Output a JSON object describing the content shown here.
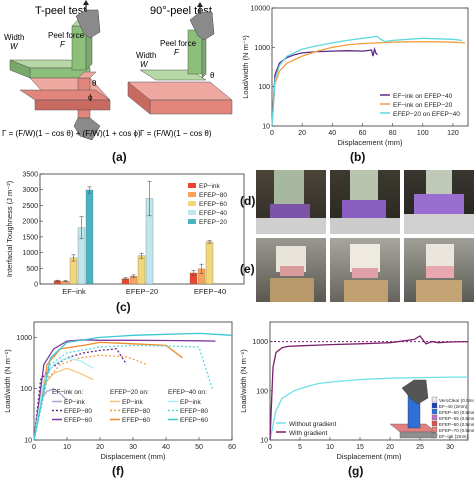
{
  "panel_a": {
    "label": "(a)",
    "tpeel_title": "T-peel test",
    "peel90_title": "90°-peel test",
    "peel_force": "Peel force",
    "force_sym": "F",
    "width": "Width",
    "width_sym": "W",
    "theta": "θ",
    "phi": "ϕ",
    "eq1": "Γ = (F/W)(1 − cos θ) + (F/W)(1 + cos ϕ)",
    "eq2": "Γ = (F/W)(1 − cos θ)",
    "colors": {
      "green": "#8cc07a",
      "red": "#e2857c",
      "gray": "#8a8a8a"
    }
  },
  "panel_b": {
    "label": "(b)",
    "chart_data": {
      "type": "line",
      "xlabel": "Displacement (mm)",
      "ylabel": "Load/width (N m⁻¹)",
      "xlim": [
        0,
        130
      ],
      "yscale": "log",
      "ylim": [
        10,
        10000
      ],
      "xticks": [
        "0",
        "20",
        "40",
        "60",
        "80",
        "100",
        "120"
      ],
      "yticks": [
        "10",
        "100",
        "1000",
        "10000"
      ],
      "legend_position": "lower-right",
      "series": [
        {
          "name": "EF−ink on EFEP−40",
          "color": "#5b2a86",
          "x": [
            0,
            2,
            5,
            10,
            15,
            20,
            30,
            40,
            50,
            60,
            66,
            67,
            68,
            69,
            70
          ],
          "y": [
            10,
            200,
            400,
            550,
            650,
            720,
            780,
            800,
            820,
            800,
            850,
            600,
            900,
            700,
            650
          ]
        },
        {
          "name": "EF−ink on EFEP−20",
          "color": "#f0a040",
          "x": [
            0,
            2,
            5,
            10,
            20,
            30,
            40,
            50,
            60,
            70,
            80,
            90,
            100,
            110,
            120,
            128
          ],
          "y": [
            10,
            120,
            250,
            400,
            600,
            800,
            1000,
            1150,
            1250,
            1300,
            1350,
            1380,
            1400,
            1380,
            1350,
            1300
          ]
        },
        {
          "name": "EFEP−20 on EFEP−40",
          "color": "#5fd8e0",
          "x": [
            0,
            2,
            5,
            10,
            20,
            30,
            40,
            50,
            60,
            70,
            72,
            75,
            80,
            90,
            100,
            110,
            120,
            126
          ],
          "y": [
            10,
            150,
            350,
            600,
            900,
            1100,
            1300,
            1500,
            1700,
            1900,
            1600,
            1400,
            1500,
            1600,
            1700,
            1650,
            1600,
            1500
          ]
        }
      ]
    }
  },
  "panel_c": {
    "label": "(c)",
    "chart_data": {
      "type": "bar",
      "ylabel": "Interfacial Toughness (J m⁻²)",
      "ylim": [
        0,
        3500
      ],
      "yticks": [
        "0",
        "500",
        "1000",
        "1500",
        "2000",
        "2500",
        "3000",
        "3500"
      ],
      "categories": [
        "EF−ink",
        "EFEP−20",
        "EFEP−40"
      ],
      "legend_position": "top-right",
      "series": [
        {
          "name": "EP−ink",
          "color": "#e8472e",
          "values": [
            100,
            170,
            350
          ],
          "errors": [
            20,
            30,
            80
          ]
        },
        {
          "name": "EFEP−80",
          "color": "#f7a35c",
          "values": [
            90,
            250,
            480
          ],
          "errors": [
            20,
            40,
            150
          ]
        },
        {
          "name": "EFEP−60",
          "color": "#f3d57a",
          "values": [
            830,
            900,
            1340
          ],
          "errors": [
            100,
            80,
            40
          ]
        },
        {
          "name": "EFEP−40",
          "color": "#bfe6ec",
          "values": [
            1790,
            2720,
            null
          ],
          "errors": [
            350,
            550,
            null
          ]
        },
        {
          "name": "EFEP−20",
          "color": "#4ab3c2",
          "values": [
            2990,
            null,
            null
          ],
          "errors": [
            100,
            null,
            null
          ]
        }
      ]
    }
  },
  "panel_d": {
    "label": "(d)"
  },
  "panel_e": {
    "label": "(e)"
  },
  "panel_f": {
    "label": "(f)",
    "chart_data": {
      "type": "line",
      "xlabel": "Displacement (mm)",
      "ylabel": "Load/width (N m⁻¹)",
      "xlim": [
        0,
        60
      ],
      "yscale": "log",
      "ylim": [
        10,
        2000
      ],
      "xticks": [
        "0",
        "10",
        "20",
        "30",
        "40",
        "50",
        "60"
      ],
      "yticks": [
        "10",
        "100",
        "1000"
      ],
      "legend_position": "bottom-center",
      "legend_groups": [
        "EF−ink on:",
        "EFEP−20 on:",
        "EFEP−40 on:"
      ],
      "legend_items": [
        "EP−ink",
        "EFEP−80",
        "EFEP−60"
      ],
      "series": [
        {
          "name": "EF−ink on EP−ink",
          "color": "#b4a0d0",
          "style": "solid",
          "x": [
            0,
            2,
            4,
            6,
            8,
            10
          ],
          "y": [
            10,
            60,
            90,
            100,
            80,
            60
          ]
        },
        {
          "name": "EF−ink on EFEP−80",
          "color": "#5b2a86",
          "style": "dotted",
          "x": [
            0,
            2,
            5,
            10,
            15,
            20,
            25,
            28
          ],
          "y": [
            10,
            150,
            250,
            400,
            500,
            560,
            600,
            300
          ]
        },
        {
          "name": "EF−ink on EFEP−60",
          "color": "#7b3a9e",
          "style": "solid",
          "x": [
            0,
            3,
            6,
            10,
            15,
            20,
            30,
            40,
            50,
            55
          ],
          "y": [
            10,
            300,
            600,
            850,
            900,
            880,
            880,
            870,
            860,
            850
          ]
        },
        {
          "name": "EFEP−20 on EP−ink",
          "color": "#f7c37c",
          "style": "solid",
          "x": [
            0,
            3,
            6,
            10,
            14,
            18
          ],
          "y": [
            10,
            120,
            200,
            250,
            200,
            150
          ]
        },
        {
          "name": "EFEP−20 on EFEP−80",
          "color": "#f0a040",
          "style": "dotted",
          "x": [
            0,
            4,
            8,
            14,
            20,
            28,
            34
          ],
          "y": [
            10,
            150,
            300,
            400,
            450,
            420,
            300
          ]
        },
        {
          "name": "EFEP−20 on EFEP−60",
          "color": "#f08a2a",
          "style": "solid",
          "x": [
            0,
            4,
            8,
            15,
            20,
            30,
            40,
            45
          ],
          "y": [
            10,
            300,
            600,
            700,
            800,
            750,
            700,
            400
          ]
        },
        {
          "name": "EFEP−40 on EP−ink",
          "color": "#a8eef2",
          "style": "solid",
          "x": [
            0,
            3,
            6,
            10,
            14,
            18
          ],
          "y": [
            10,
            150,
            300,
            400,
            350,
            250
          ]
        },
        {
          "name": "EFEP−40 on EFEP−80",
          "color": "#5fd8e0",
          "style": "dotted",
          "x": [
            0,
            5,
            10,
            20,
            30,
            40,
            50,
            54
          ],
          "y": [
            10,
            300,
            500,
            650,
            700,
            680,
            650,
            100
          ]
        },
        {
          "name": "EFEP−40 on EFEP−60",
          "color": "#3cc8d4",
          "style": "solid",
          "x": [
            0,
            5,
            10,
            20,
            30,
            40,
            50,
            55,
            60
          ],
          "y": [
            10,
            400,
            800,
            1000,
            1100,
            1150,
            1200,
            1150,
            1100
          ]
        }
      ]
    }
  },
  "panel_g": {
    "label": "(g)",
    "chart_data": {
      "type": "line",
      "xlabel": "Displacement (mm)",
      "ylabel": "Load/width (N m⁻¹)",
      "xlim": [
        0,
        33
      ],
      "yscale": "log",
      "ylim": [
        10,
        2500
      ],
      "xticks": [
        "0",
        "5",
        "10",
        "15",
        "20",
        "25",
        "30"
      ],
      "yticks": [
        "10",
        "100",
        "1000"
      ],
      "legend_position": "bottom-left",
      "reference_line": {
        "y": 1000,
        "color": "#7b1f6a"
      },
      "series": [
        {
          "name": "Without gradient",
          "color": "#6ee0e8",
          "x": [
            0,
            1,
            2,
            4,
            6,
            8,
            10,
            15,
            20,
            25,
            30,
            33
          ],
          "y": [
            10,
            40,
            70,
            100,
            120,
            140,
            150,
            170,
            180,
            185,
            190,
            190
          ]
        },
        {
          "name": "With gradient",
          "color": "#7b1f6a",
          "x": [
            0,
            0.5,
            1,
            2,
            3,
            5,
            8,
            10,
            15,
            20,
            24,
            25,
            26,
            27,
            28,
            30,
            33
          ],
          "y": [
            10,
            300,
            600,
            750,
            800,
            820,
            850,
            870,
            900,
            950,
            1100,
            1300,
            900,
            1000,
            950,
            980,
            1000
          ]
        }
      ]
    },
    "inset_legend": [
      {
        "label": "VeroClear (0.5mm)",
        "color": "#f0e0f0"
      },
      {
        "label": "EF−40 (2mm)",
        "color": "#1f3fbf"
      },
      {
        "label": "EFEP−50 (0.5mm)",
        "color": "#2f6fd8"
      },
      {
        "label": "EFEP−55 (0.5mm)",
        "color": "#c070c0"
      },
      {
        "label": "EFEP−60 (0.5mm)",
        "color": "#e05050"
      },
      {
        "label": "EFEP−70 (0.5mm)",
        "color": "#e08080"
      },
      {
        "label": "EF−ink (2mm)",
        "color": "#909090"
      }
    ]
  }
}
